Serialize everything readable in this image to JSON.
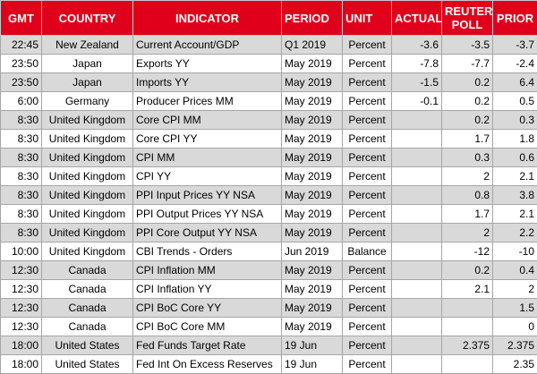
{
  "table": {
    "headers": {
      "gmt": "GMT",
      "country": "COUNTRY",
      "indicator": "INDICATOR",
      "period": "PERIOD",
      "unit": "UNIT",
      "actual": "ACTUAL",
      "poll": "REUTERS POLL",
      "prior": "PRIOR"
    },
    "colors": {
      "header_bg": "#e0001b",
      "header_text": "#ffffff",
      "shaded_row": "#d9d9d9",
      "plain_row": "#ffffff"
    },
    "rows": [
      {
        "gmt": "22:45",
        "country": "New Zealand",
        "indicator": "Current Account/GDP",
        "period": "Q1 2019",
        "unit": "Percent",
        "actual": "-3.6",
        "poll": "-3.5",
        "prior": "-3.7"
      },
      {
        "gmt": "23:50",
        "country": "Japan",
        "indicator": "Exports YY",
        "period": "May 2019",
        "unit": "Percent",
        "actual": "-7.8",
        "poll": "-7.7",
        "prior": "-2.4"
      },
      {
        "gmt": "23:50",
        "country": "Japan",
        "indicator": "Imports YY",
        "period": "May 2019",
        "unit": "Percent",
        "actual": "-1.5",
        "poll": "0.2",
        "prior": "6.4"
      },
      {
        "gmt": "6:00",
        "country": "Germany",
        "indicator": "Producer Prices MM",
        "period": "May 2019",
        "unit": "Percent",
        "actual": "-0.1",
        "poll": "0.2",
        "prior": "0.5"
      },
      {
        "gmt": "8:30",
        "country": "United Kingdom",
        "indicator": "Core CPI MM",
        "period": "May 2019",
        "unit": "Percent",
        "actual": "",
        "poll": "0.2",
        "prior": "0.3"
      },
      {
        "gmt": "8:30",
        "country": "United Kingdom",
        "indicator": "Core CPI YY",
        "period": "May 2019",
        "unit": "Percent",
        "actual": "",
        "poll": "1.7",
        "prior": "1.8"
      },
      {
        "gmt": "8:30",
        "country": "United Kingdom",
        "indicator": "CPI MM",
        "period": "May 2019",
        "unit": "Percent",
        "actual": "",
        "poll": "0.3",
        "prior": "0.6"
      },
      {
        "gmt": "8:30",
        "country": "United Kingdom",
        "indicator": "CPI YY",
        "period": "May 2019",
        "unit": "Percent",
        "actual": "",
        "poll": "2",
        "prior": "2.1"
      },
      {
        "gmt": "8:30",
        "country": "United Kingdom",
        "indicator": "PPI Input Prices YY NSA",
        "period": "May 2019",
        "unit": "Percent",
        "actual": "",
        "poll": "0.8",
        "prior": "3.8"
      },
      {
        "gmt": "8:30",
        "country": "United Kingdom",
        "indicator": "PPI Output Prices YY NSA",
        "period": "May 2019",
        "unit": "Percent",
        "actual": "",
        "poll": "1.7",
        "prior": "2.1"
      },
      {
        "gmt": "8:30",
        "country": "United Kingdom",
        "indicator": "PPI Core Output YY NSA",
        "period": "May 2019",
        "unit": "Percent",
        "actual": "",
        "poll": "2",
        "prior": "2.2"
      },
      {
        "gmt": "10:00",
        "country": "United Kingdom",
        "indicator": "CBI Trends - Orders",
        "period": "Jun 2019",
        "unit": "Balance",
        "actual": "",
        "poll": "-12",
        "prior": "-10"
      },
      {
        "gmt": "12:30",
        "country": "Canada",
        "indicator": "CPI Inflation MM",
        "period": "May 2019",
        "unit": "Percent",
        "actual": "",
        "poll": "0.2",
        "prior": "0.4"
      },
      {
        "gmt": "12:30",
        "country": "Canada",
        "indicator": "CPI Inflation YY",
        "period": "May 2019",
        "unit": "Percent",
        "actual": "",
        "poll": "2.1",
        "prior": "2"
      },
      {
        "gmt": "12:30",
        "country": "Canada",
        "indicator": "CPI BoC Core YY",
        "period": "May 2019",
        "unit": "Percent",
        "actual": "",
        "poll": "",
        "prior": "1.5"
      },
      {
        "gmt": "12:30",
        "country": "Canada",
        "indicator": "CPI BoC Core MM",
        "period": "May 2019",
        "unit": "Percent",
        "actual": "",
        "poll": "",
        "prior": "0"
      },
      {
        "gmt": "18:00",
        "country": "United States",
        "indicator": "Fed Funds Target Rate",
        "period": "19 Jun",
        "unit": "Percent",
        "actual": "",
        "poll": "2.375",
        "prior": "2.375"
      },
      {
        "gmt": "18:00",
        "country": "United States",
        "indicator": "Fed Int On Excess Reserves",
        "period": "19 Jun",
        "unit": "Percent",
        "actual": "",
        "poll": "",
        "prior": "2.35"
      }
    ]
  }
}
